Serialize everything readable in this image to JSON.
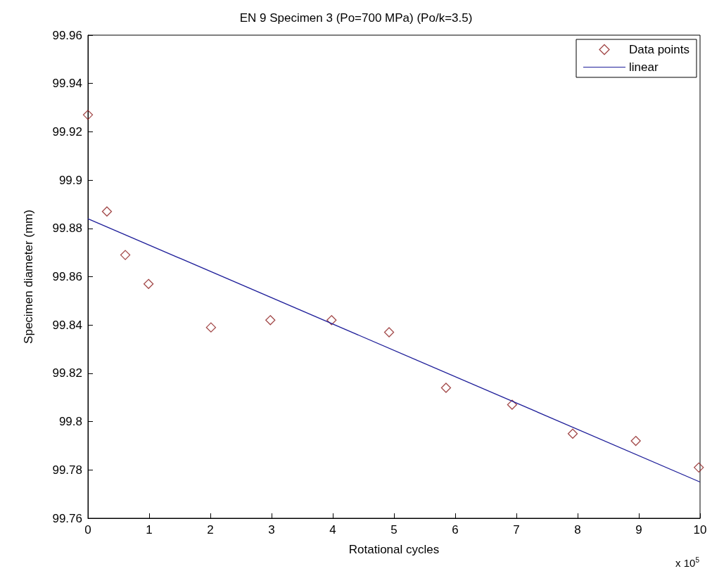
{
  "chart_data": {
    "type": "scatter",
    "title": "EN 9 Specimen 3 (Po=700 MPa) (Po/k=3.5)",
    "xlabel": "Rotational cycles",
    "ylabel": "Specimen diameter (mm)",
    "annotations": [
      "x 10$^{5}$"
    ],
    "series": [
      {
        "name": "Data points",
        "color": "#8b1a1a",
        "x": [
          0,
          0.31,
          0.61,
          0.99,
          2.01,
          2.98,
          3.98,
          4.92,
          5.85,
          6.93,
          7.92,
          8.95,
          9.98
        ],
        "values": [
          99.927,
          99.887,
          99.869,
          99.857,
          99.839,
          99.842,
          99.842,
          99.837,
          99.814,
          99.807,
          99.795,
          99.792,
          99.781
        ]
      },
      {
        "name": "linear",
        "type": "line",
        "marker": "none",
        "color": "#1f1f9a",
        "x": [
          0,
          10
        ],
        "values": [
          99.884,
          99.775
        ]
      }
    ],
    "xlim": [
      0,
      10
    ],
    "xticks": [
      0,
      1,
      2,
      3,
      4,
      5,
      6,
      7,
      8,
      9,
      10
    ],
    "ylim": [
      99.76,
      99.96
    ],
    "yticks": [
      99.76,
      99.78,
      99.8,
      99.82,
      99.84,
      99.86,
      99.88,
      99.9,
      99.92,
      99.94,
      99.96
    ],
    "grid": false,
    "legend": "top right",
    "marker": "diamond",
    "line_style": "solid"
  }
}
